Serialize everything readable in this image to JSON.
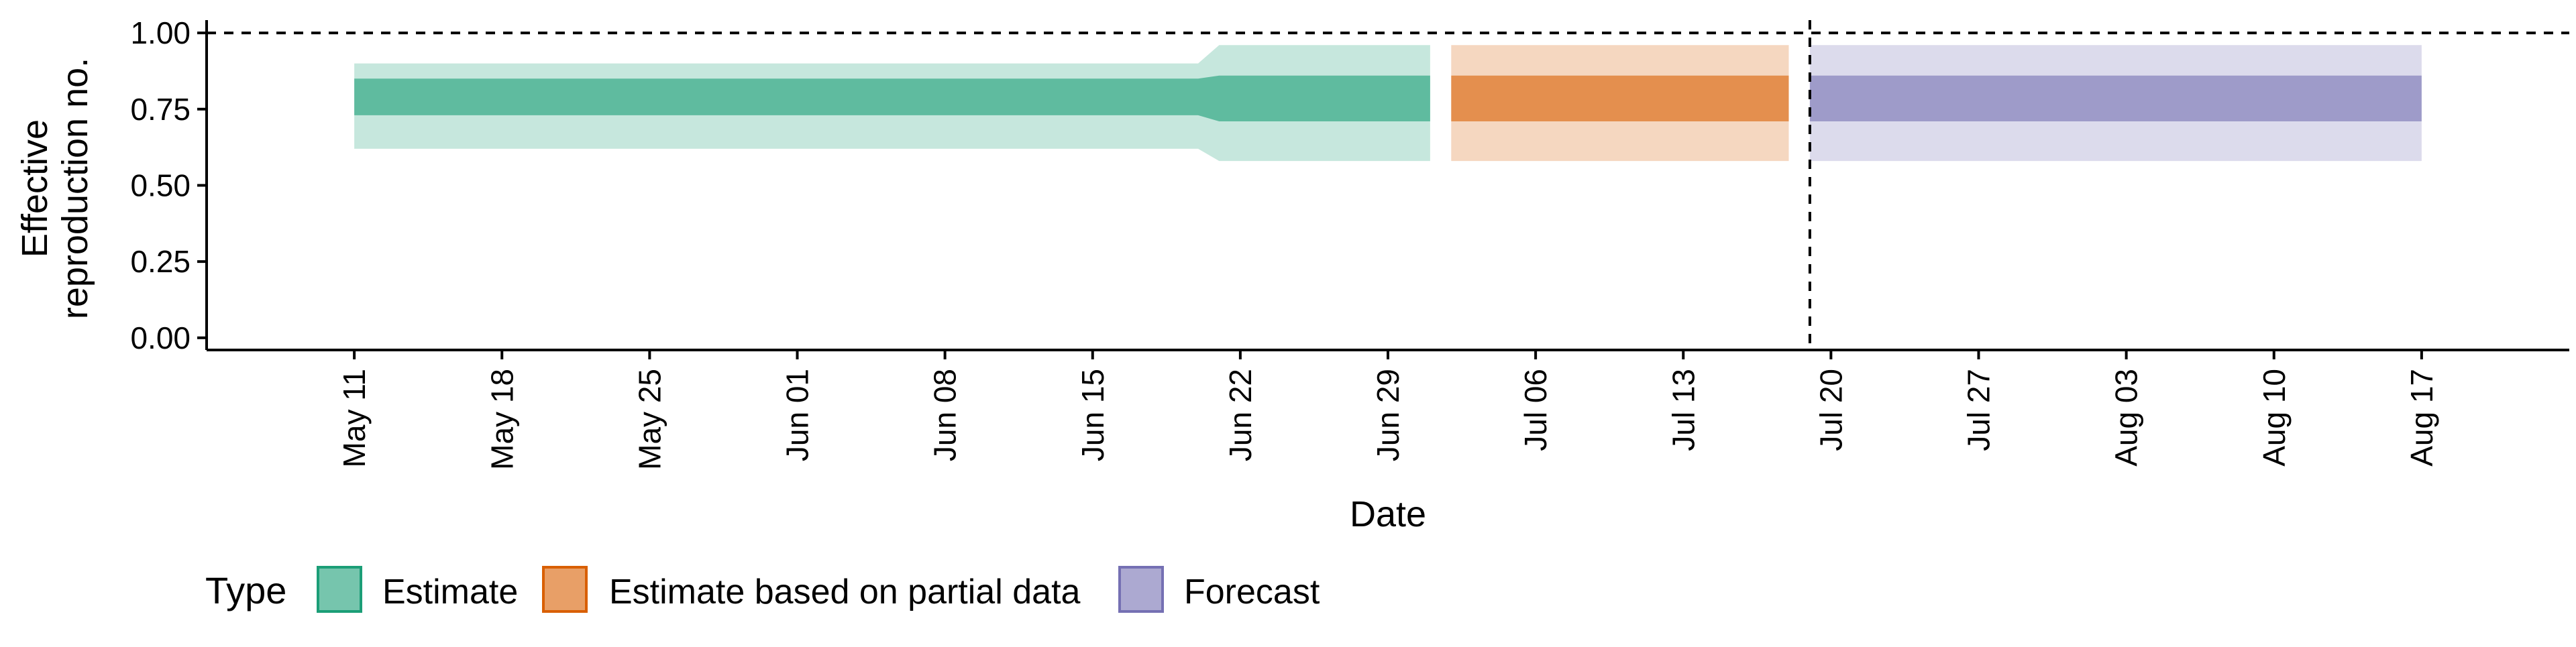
{
  "chart_data": {
    "type": "area",
    "xlabel": "Date",
    "ylabel_lines": [
      "Effective",
      "reproduction no."
    ],
    "ylim": [
      0,
      1
    ],
    "yticks": [
      "0.00",
      "0.25",
      "0.50",
      "0.75",
      "1.00"
    ],
    "xlim": [
      "2021-05-04",
      "2021-08-24"
    ],
    "xticks": [
      "2021-05-11",
      "2021-05-18",
      "2021-05-25",
      "2021-06-01",
      "2021-06-08",
      "2021-06-15",
      "2021-06-22",
      "2021-06-29",
      "2021-07-06",
      "2021-07-13",
      "2021-07-20",
      "2021-07-27",
      "2021-08-03",
      "2021-08-10",
      "2021-08-17"
    ],
    "xtick_labels": [
      "May 11",
      "May 18",
      "May 25",
      "Jun 01",
      "Jun 08",
      "Jun 15",
      "Jun 22",
      "Jun 29",
      "Jul 06",
      "Jul 13",
      "Jul 20",
      "Jul 27",
      "Aug 03",
      "Aug 10",
      "Aug 17"
    ],
    "reference_lines": {
      "hline_y": 1.0,
      "vline_date": "2021-07-19"
    },
    "grid": false,
    "legend_position": "bottom",
    "legend_title": "Type",
    "series": [
      {
        "name": "Estimate",
        "color": "#1b9e77",
        "points": [
          {
            "date": "2021-05-11",
            "lower90": 0.62,
            "lower50": 0.73,
            "upper50": 0.85,
            "upper90": 0.9
          },
          {
            "date": "2021-06-20",
            "lower90": 0.62,
            "lower50": 0.73,
            "upper50": 0.85,
            "upper90": 0.9
          },
          {
            "date": "2021-06-21",
            "lower90": 0.58,
            "lower50": 0.71,
            "upper50": 0.86,
            "upper90": 0.96
          },
          {
            "date": "2021-07-01",
            "lower90": 0.58,
            "lower50": 0.71,
            "upper50": 0.86,
            "upper90": 0.96
          }
        ]
      },
      {
        "name": "Estimate based on partial data",
        "color": "#d95f02",
        "points": [
          {
            "date": "2021-07-02",
            "lower90": 0.58,
            "lower50": 0.71,
            "upper50": 0.86,
            "upper90": 0.96
          },
          {
            "date": "2021-07-18",
            "lower90": 0.58,
            "lower50": 0.71,
            "upper50": 0.86,
            "upper90": 0.96
          }
        ]
      },
      {
        "name": "Forecast",
        "color": "#7570b3",
        "points": [
          {
            "date": "2021-07-19",
            "lower90": 0.58,
            "lower50": 0.71,
            "upper50": 0.86,
            "upper90": 0.96
          },
          {
            "date": "2021-08-17",
            "lower90": 0.58,
            "lower50": 0.71,
            "upper50": 0.86,
            "upper90": 0.96
          }
        ]
      }
    ]
  }
}
